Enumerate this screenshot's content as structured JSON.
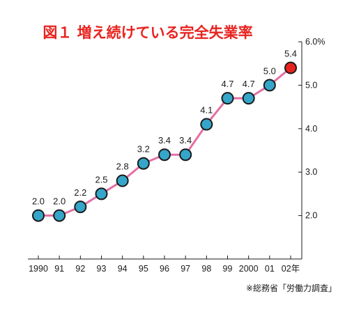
{
  "chart_data": {
    "type": "line",
    "title": "図１ 増え続けている完全失業率",
    "categories": [
      "1990",
      "91",
      "92",
      "93",
      "94",
      "95",
      "96",
      "97",
      "98",
      "99",
      "2000",
      "01",
      "02年"
    ],
    "values": [
      2.0,
      2.0,
      2.2,
      2.5,
      2.8,
      3.2,
      3.4,
      3.4,
      4.1,
      4.7,
      4.7,
      5.0,
      5.4
    ],
    "data_labels": [
      "2.0",
      "2.0",
      "2.2",
      "2.5",
      "2.8",
      "3.2",
      "3.4",
      "3.4",
      "4.1",
      "4.7",
      "4.7",
      "5.0",
      "5.4"
    ],
    "ylim": [
      1.0,
      6.0
    ],
    "y_ticks": [
      2.0,
      3.0,
      4.0,
      5.0,
      6.0
    ],
    "y_tick_labels": [
      "2.0",
      "3.0",
      "4.0",
      "5.0",
      "6.0%"
    ],
    "y_axis_position": "right",
    "grid": false,
    "source": "※総務省「労働力調査」",
    "colors": {
      "title": "#e8231f",
      "line": "#e26fa3",
      "point": "#35a6c9",
      "highlight_point": "#e8231f"
    }
  }
}
